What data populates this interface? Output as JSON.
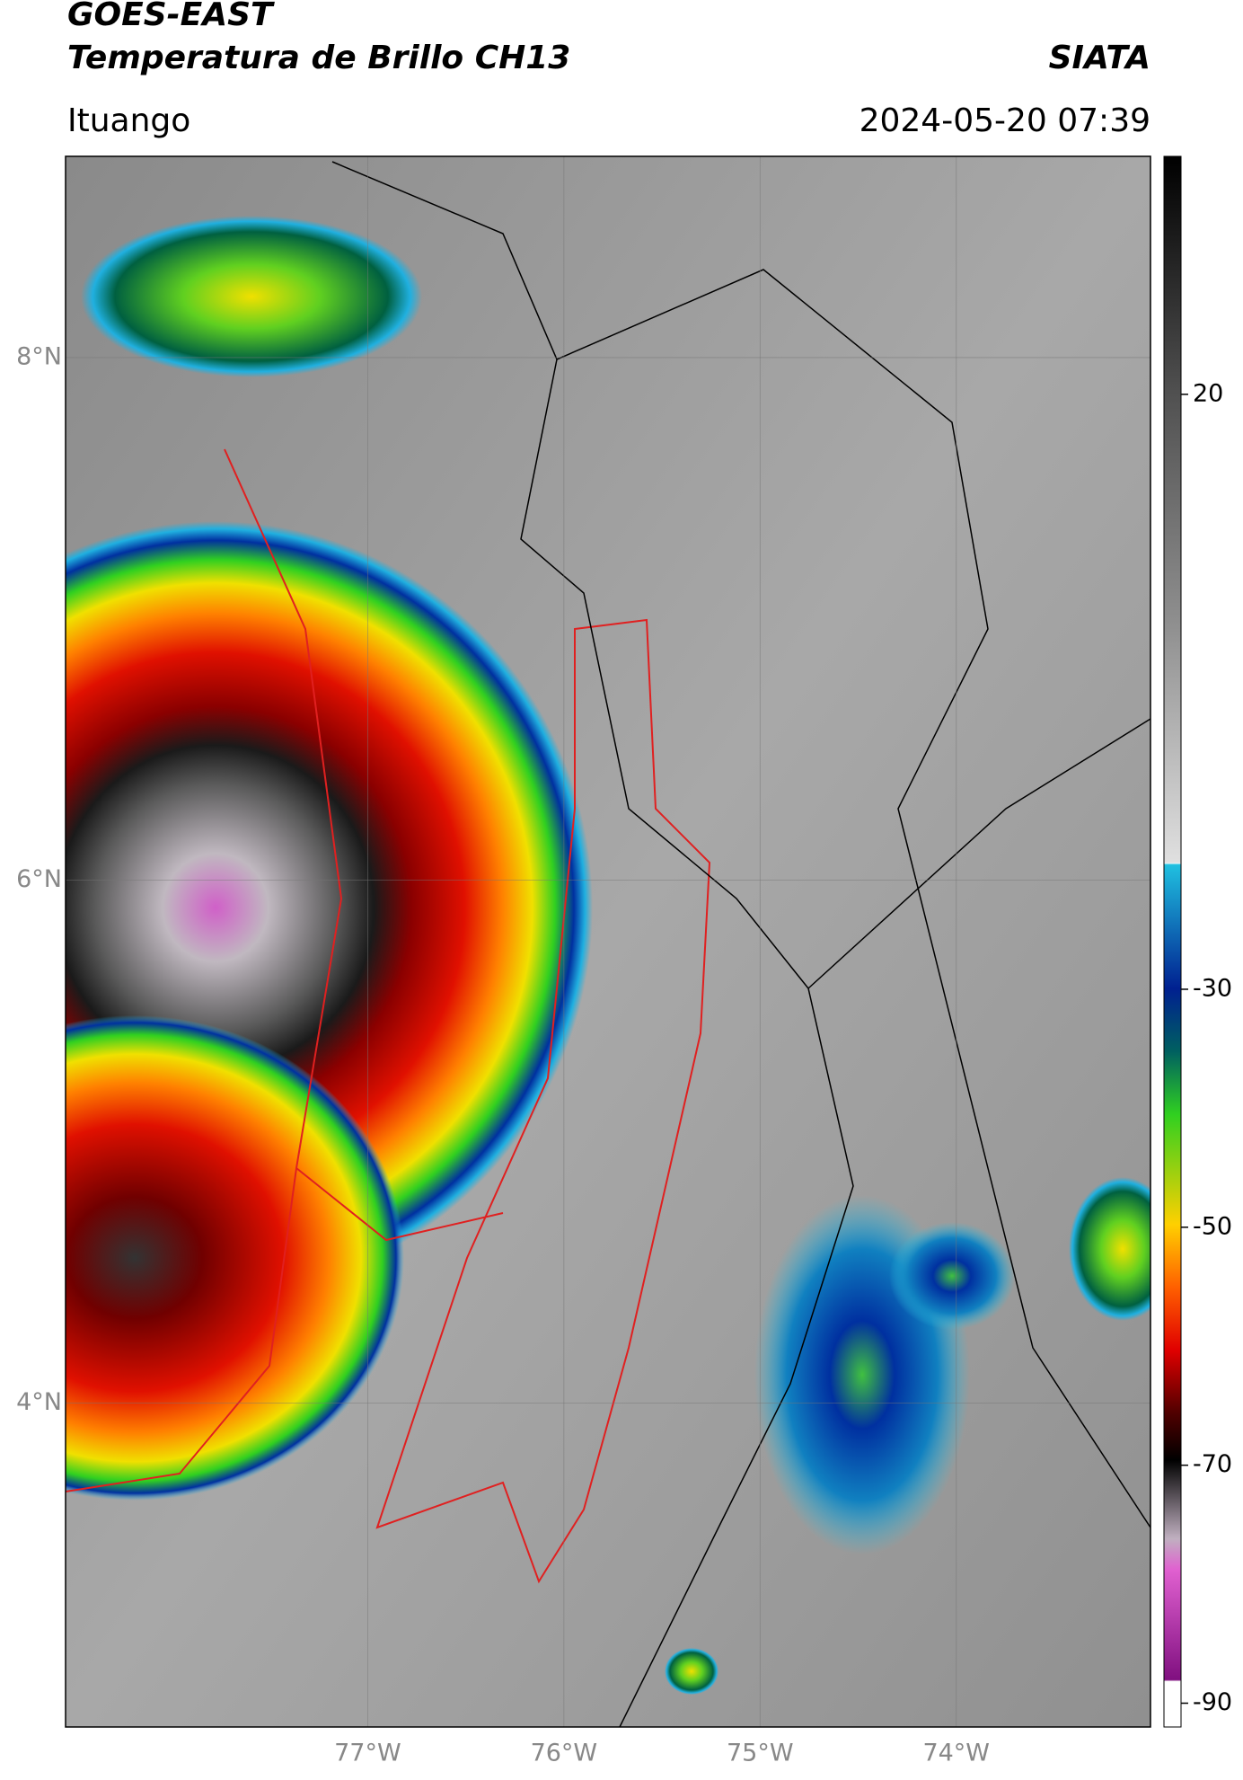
{
  "header": {
    "title": "GOES-EAST",
    "subtitle": "Temperatura de Brillo CH13",
    "source": "SIATA",
    "location": "Ituango",
    "datetime": "2024-05-20 07:39"
  },
  "map": {
    "lon_range": [
      -78.54,
      -73.01
    ],
    "lat_range": [
      2.76,
      8.77
    ],
    "lat_ticks": [
      {
        "value": 8,
        "label": "8°N"
      },
      {
        "value": 6,
        "label": "6°N"
      },
      {
        "value": 4,
        "label": "4°N"
      }
    ],
    "lon_ticks": [
      {
        "value": -77,
        "label": "77°W"
      },
      {
        "value": -76,
        "label": "76°W"
      },
      {
        "value": -75,
        "label": "75°W"
      },
      {
        "value": -74,
        "label": "74°W"
      }
    ],
    "grid": true
  },
  "colorbar": {
    "range": [
      -92,
      40
    ],
    "ticks": [
      20,
      -30,
      -50,
      -70,
      -90
    ]
  }
}
